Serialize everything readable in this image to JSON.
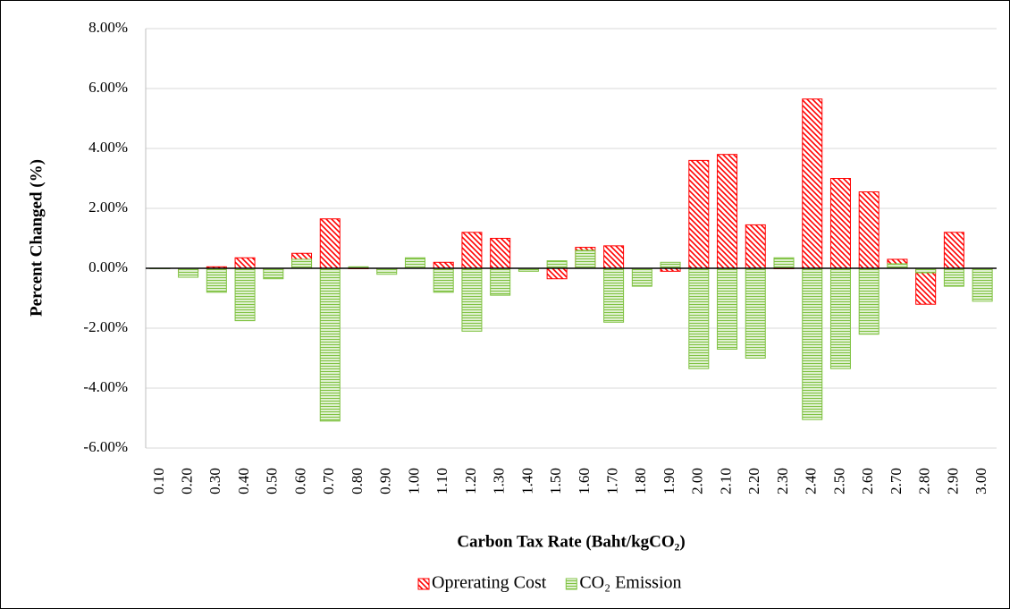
{
  "chart_data": {
    "type": "bar",
    "x_label": "Carbon Tax Rate (Baht/kgCO₂)",
    "y_label": "Percent Changed (%)",
    "categories": [
      "0.10",
      "0.20",
      "0.30",
      "0.40",
      "0.50",
      "0.60",
      "0.70",
      "0.80",
      "0.90",
      "1.00",
      "1.10",
      "1.20",
      "1.30",
      "1.40",
      "1.50",
      "1.60",
      "1.70",
      "1.80",
      "1.90",
      "2.00",
      "2.10",
      "2.20",
      "2.30",
      "2.40",
      "2.50",
      "2.60",
      "2.70",
      "2.80",
      "2.90",
      "3.00"
    ],
    "series": [
      {
        "name": "Oprerating Cost",
        "color": "#ff0000",
        "pattern": "diagonal",
        "values": [
          0,
          -0.1,
          0.05,
          0.35,
          -0.05,
          0.5,
          1.65,
          0,
          -0.05,
          0.05,
          0.2,
          1.2,
          1.0,
          0,
          -0.35,
          0.7,
          0.75,
          0,
          -0.1,
          3.6,
          3.8,
          1.45,
          0,
          5.65,
          3.0,
          2.55,
          0.3,
          -1.2,
          1.2,
          0
        ]
      },
      {
        "name": "CO₂  Emission",
        "color": "#7fc241",
        "pattern": "horizontal",
        "values": [
          0,
          -0.3,
          -0.8,
          -1.75,
          -0.35,
          0.3,
          -5.1,
          0.05,
          -0.2,
          0.35,
          -0.8,
          -2.1,
          -0.9,
          -0.1,
          0.25,
          0.6,
          -1.8,
          -0.6,
          0.2,
          -3.35,
          -2.7,
          -3.0,
          0.35,
          -5.05,
          -3.35,
          -2.2,
          0.15,
          -0.15,
          -0.6,
          -1.1
        ]
      }
    ],
    "ylim": [
      -6,
      8
    ],
    "yticks": [
      {
        "value": -6,
        "label": "-6.00%"
      },
      {
        "value": -4,
        "label": "-4.00%"
      },
      {
        "value": -2,
        "label": "-2.00%"
      },
      {
        "value": 0,
        "label": "0.00%"
      },
      {
        "value": 2,
        "label": "2.00%"
      },
      {
        "value": 4,
        "label": "4.00%"
      },
      {
        "value": 6,
        "label": "6.00%"
      },
      {
        "value": 8,
        "label": "8.00%"
      }
    ],
    "grid": true,
    "legend": "bottom"
  }
}
